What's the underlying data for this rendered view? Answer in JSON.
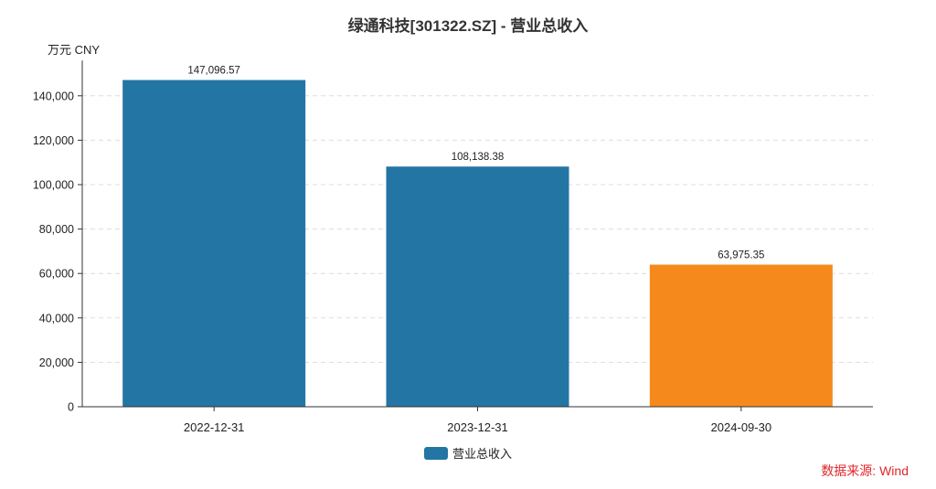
{
  "chart_data": {
    "type": "bar",
    "title": "绿通科技[301322.SZ] - 营业总收入",
    "unit_label": "万元  CNY",
    "categories": [
      "2022-12-31",
      "2023-12-31",
      "2024-09-30"
    ],
    "series": [
      {
        "name": "营业总收入",
        "values": [
          147096.57,
          108138.38,
          63975.35
        ]
      }
    ],
    "value_labels": [
      "147,096.57",
      "108,138.38",
      "63,975.35"
    ],
    "bar_colors": [
      "#2375a4",
      "#2375a4",
      "#f5891b"
    ],
    "legend_color": "#2375a4",
    "ylim": [
      0,
      160000
    ],
    "yticks": [
      0,
      20000,
      40000,
      60000,
      80000,
      100000,
      120000,
      140000
    ],
    "ytick_labels": [
      "0",
      "20,000",
      "40,000",
      "60,000",
      "80,000",
      "100,000",
      "120,000",
      "140,000"
    ],
    "grid": true,
    "legend_position": "bottom-center",
    "source": "数据来源: Wind"
  }
}
